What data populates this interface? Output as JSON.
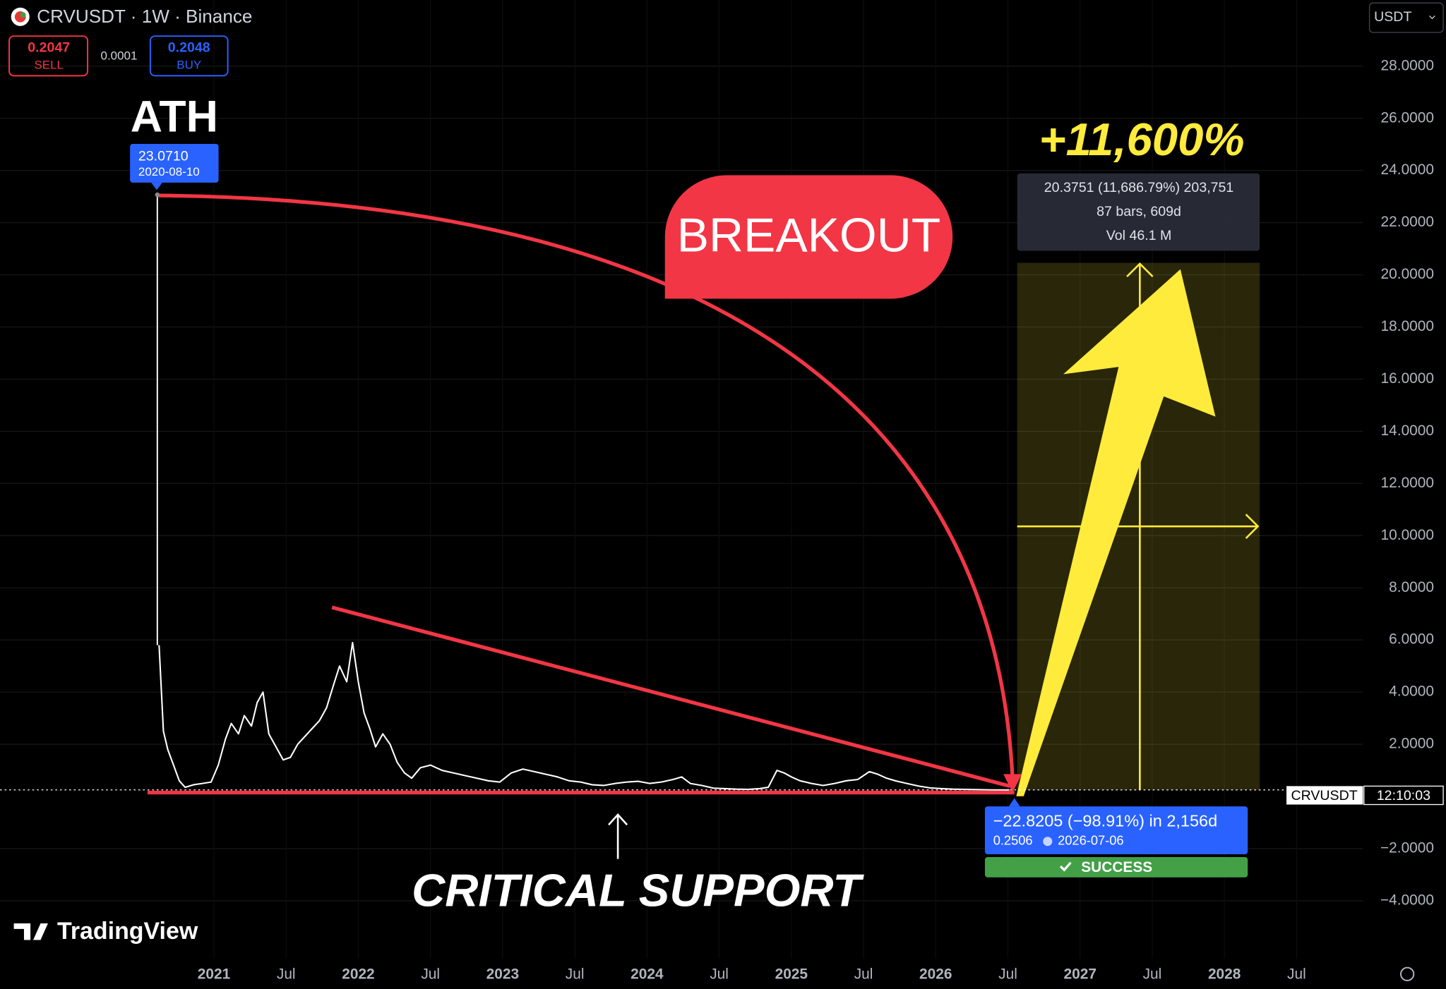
{
  "header": {
    "symbol": "CRVUSDT · 1W · Binance",
    "sell_price": "0.2047",
    "sell": "SELL",
    "spread": "0.0001",
    "buy_price": "0.2048",
    "buy": "BUY",
    "currency": "USDT"
  },
  "chart_data": {
    "type": "line",
    "color": "#ffffff",
    "x": [
      2020.62,
      2020.65,
      2020.68,
      2020.72,
      2020.76,
      2020.8,
      2020.86,
      2020.92,
      2020.98,
      2021.03,
      2021.08,
      2021.12,
      2021.17,
      2021.21,
      2021.26,
      2021.3,
      2021.34,
      2021.38,
      2021.43,
      2021.48,
      2021.53,
      2021.58,
      2021.63,
      2021.68,
      2021.73,
      2021.78,
      2021.83,
      2021.87,
      2021.92,
      2021.96,
      2022.0,
      2022.04,
      2022.08,
      2022.12,
      2022.17,
      2022.22,
      2022.27,
      2022.32,
      2022.37,
      2022.43,
      2022.5,
      2022.58,
      2022.66,
      2022.74,
      2022.82,
      2022.9,
      2022.98,
      2023.06,
      2023.14,
      2023.22,
      2023.3,
      2023.38,
      2023.46,
      2023.54,
      2023.62,
      2023.7,
      2023.78,
      2023.86,
      2023.94,
      2024.02,
      2024.1,
      2024.18,
      2024.24,
      2024.3,
      2024.38,
      2024.46,
      2024.54,
      2024.62,
      2024.7,
      2024.78,
      2024.84,
      2024.9,
      2024.95,
      2025.0,
      2025.06,
      2025.14,
      2025.22,
      2025.3,
      2025.38,
      2025.46,
      2025.54,
      2025.6,
      2025.66,
      2025.72,
      2025.8,
      2025.88,
      2025.96,
      2026.04,
      2026.12,
      2026.2,
      2026.3,
      2026.4,
      2026.51
    ],
    "values": [
      5.8,
      2.5,
      1.8,
      1.2,
      0.6,
      0.35,
      0.45,
      0.5,
      0.55,
      1.2,
      2.2,
      2.8,
      2.4,
      3.1,
      2.7,
      3.6,
      4.0,
      2.4,
      1.9,
      1.4,
      1.5,
      2.0,
      2.3,
      2.6,
      2.9,
      3.4,
      4.3,
      5.0,
      4.4,
      5.9,
      4.4,
      3.2,
      2.6,
      1.9,
      2.4,
      2.0,
      1.3,
      0.9,
      0.7,
      1.1,
      1.2,
      1.0,
      0.9,
      0.8,
      0.7,
      0.6,
      0.55,
      0.9,
      1.05,
      0.95,
      0.85,
      0.75,
      0.6,
      0.55,
      0.45,
      0.42,
      0.5,
      0.55,
      0.58,
      0.5,
      0.55,
      0.65,
      0.75,
      0.5,
      0.42,
      0.32,
      0.3,
      0.28,
      0.27,
      0.3,
      0.35,
      1.0,
      0.9,
      0.75,
      0.6,
      0.5,
      0.42,
      0.5,
      0.6,
      0.65,
      0.95,
      0.85,
      0.7,
      0.6,
      0.5,
      0.4,
      0.33,
      0.3,
      0.28,
      0.27,
      0.26,
      0.25,
      0.2506
    ],
    "xlim": [
      2019.518,
      2028.96
    ],
    "xticks": [
      2021,
      {
        "value": 2021.5,
        "label": "Jul"
      },
      2022,
      {
        "value": 2022.5,
        "label": "Jul"
      },
      2023,
      {
        "value": 2023.5,
        "label": "Jul"
      },
      2024,
      {
        "value": 2024.5,
        "label": "Jul"
      },
      2025,
      {
        "value": 2025.5,
        "label": "Jul"
      },
      2026,
      {
        "value": 2026.5,
        "label": "Jul"
      },
      2027,
      {
        "value": 2027.5,
        "label": "Jul"
      },
      2028,
      {
        "value": 2028.5,
        "label": "Jul"
      }
    ],
    "ylim": [
      -6.21,
      30.53
    ],
    "yticks": [
      {
        "value": -4,
        "label": "−4.0000"
      },
      {
        "value": -2,
        "label": "−2.0000"
      },
      {
        "value": 2,
        "label": "2.0000"
      },
      {
        "value": 4,
        "label": "4.0000"
      },
      {
        "value": 6,
        "label": "6.0000"
      },
      {
        "value": 8,
        "label": "8.0000"
      },
      {
        "value": 10,
        "label": "10.0000"
      },
      {
        "value": 12,
        "label": "12.0000"
      },
      {
        "value": 14,
        "label": "14.0000"
      },
      {
        "value": 16,
        "label": "16.0000"
      },
      {
        "value": 18,
        "label": "18.0000"
      },
      {
        "value": 20,
        "label": "20.0000"
      },
      {
        "value": 22,
        "label": "22.0000"
      },
      {
        "value": 24,
        "label": "24.0000"
      },
      {
        "value": 26,
        "label": "26.0000"
      },
      {
        "value": 28,
        "label": "28.0000"
      }
    ],
    "grid": true,
    "ath": {
      "title": "ATH",
      "value": 23.071,
      "value_label": "23.0710",
      "date": "2020-08-10"
    },
    "annotations": {
      "breakout": "BREAKOUT",
      "gain": "+11,600%",
      "support": "CRITICAL SUPPORT"
    },
    "drawdown": {
      "text": "−22.8205 (−98.91%) in 2,156d",
      "price": "0.2506",
      "date": "2026-07-06",
      "status": "SUCCESS"
    },
    "projection": {
      "text": "20.3751 (11,686.79%) 203,751",
      "bars": "87 bars, 609d",
      "volume": "Vol 46.1 M"
    },
    "price_label": {
      "symbol": "CRVUSDT",
      "time": "12:10:03"
    }
  },
  "brand": "TradingView"
}
